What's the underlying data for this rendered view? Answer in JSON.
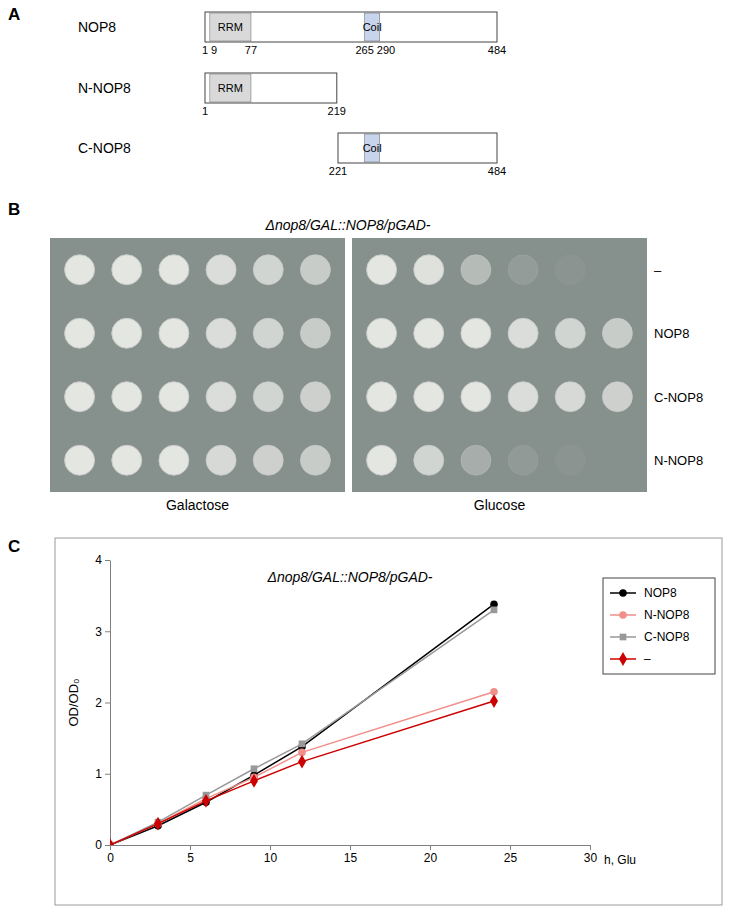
{
  "diagram": {
    "letter": "A",
    "proteins": [
      {
        "name": "NOP8",
        "start": 1,
        "end": 484,
        "domains": [
          {
            "name": "RRM",
            "start": 9,
            "end": 77
          },
          {
            "name": "Coil",
            "start": 265,
            "end": 290
          }
        ],
        "labeled": [
          1,
          9,
          77,
          265,
          290,
          484
        ]
      },
      {
        "name": "N-NOP8",
        "start": 1,
        "end": 219,
        "domains": [
          {
            "name": "RRM",
            "start": 9,
            "end": 77
          }
        ],
        "labeled": [
          1,
          219
        ]
      },
      {
        "name": "C-NOP8",
        "start": 221,
        "end": 484,
        "domains": [
          {
            "name": "Coil",
            "start": 265,
            "end": 290
          }
        ],
        "labeled": [
          221,
          484
        ]
      }
    ]
  },
  "spot_assay": {
    "letter": "B",
    "title": "Δnop8/GAL::NOP8/pGAD-",
    "conditions": [
      "Galactose",
      "Glucose"
    ],
    "strains": [
      "–",
      "NOP8",
      "C-NOP8",
      "N-NOP8"
    ],
    "growth": [
      [
        [
          1,
          1,
          1,
          0.9,
          0.8,
          0.7
        ],
        [
          1,
          1,
          1,
          0.9,
          0.8,
          0.7
        ],
        [
          1,
          1,
          1,
          0.9,
          0.8,
          0.75
        ],
        [
          1,
          1,
          1,
          0.85,
          0.75,
          0.7
        ]
      ],
      [
        [
          1,
          0.95,
          0.5,
          0.15,
          0.05,
          0
        ],
        [
          1,
          1,
          1,
          0.9,
          0.8,
          0.7
        ],
        [
          1,
          1,
          1,
          0.9,
          0.85,
          0.75
        ],
        [
          1,
          0.8,
          0.35,
          0.12,
          0.05,
          0
        ]
      ]
    ]
  },
  "chart_data": {
    "type": "line",
    "letter": "C",
    "title": "Δnop8/GAL::NOP8/pGAD-",
    "x_label": "h, Glu",
    "y_label": "OD/OD₀",
    "x": [
      0,
      3,
      6,
      9,
      12,
      24
    ],
    "series": [
      {
        "name": "NOP8",
        "color": "#000000",
        "marker": "circle",
        "values": [
          0,
          0.27,
          0.6,
          0.98,
          1.38,
          3.38
        ]
      },
      {
        "name": "N-NOP8",
        "color": "#f08f8a",
        "marker": "circle",
        "values": [
          0,
          0.3,
          0.65,
          0.95,
          1.3,
          2.15
        ]
      },
      {
        "name": "C-NOP8",
        "color": "#999999",
        "marker": "square",
        "values": [
          0,
          0.32,
          0.7,
          1.07,
          1.42,
          3.3
        ]
      },
      {
        "name": "–",
        "color": "#cc0000",
        "marker": "diamond",
        "values": [
          0,
          0.3,
          0.62,
          0.9,
          1.17,
          2.02
        ]
      }
    ],
    "xlim": [
      0,
      30
    ],
    "ylim": [
      0,
      4
    ],
    "xticks": [
      0,
      5,
      10,
      15,
      20,
      25,
      30
    ],
    "yticks": [
      0,
      1,
      2,
      3,
      4
    ],
    "legend": "upper right"
  }
}
